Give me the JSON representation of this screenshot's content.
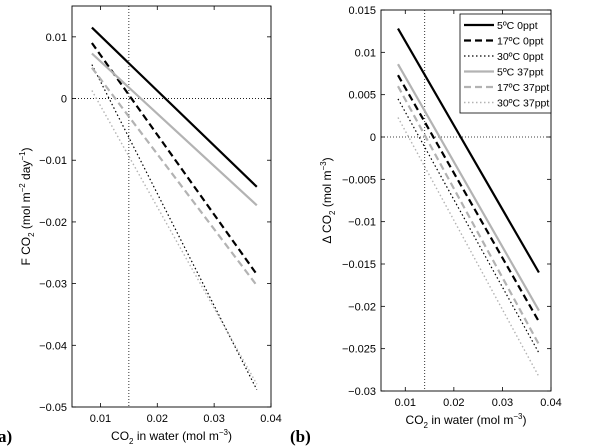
{
  "panel_labels": [
    "a)",
    "(b)"
  ],
  "legend_entries": [
    "5ºC 0ppt",
    "17ºC 0ppt",
    "30ºC 0ppt",
    "5ºC 37ppt",
    "17ºC 37ppt",
    "30ºC 37ppt"
  ],
  "series_styles": [
    {
      "color": "#000000",
      "width": 2.2,
      "dash": ""
    },
    {
      "color": "#000000",
      "width": 2.2,
      "dash": "7,4"
    },
    {
      "color": "#000000",
      "width": 1.2,
      "dash": "1.5,2.5"
    },
    {
      "color": "#b3b3b3",
      "width": 2.2,
      "dash": ""
    },
    {
      "color": "#b3b3b3",
      "width": 2.2,
      "dash": "7,4"
    },
    {
      "color": "#b3b3b3",
      "width": 1.4,
      "dash": "1.5,2.5"
    }
  ],
  "chart_data": [
    {
      "type": "line",
      "panel": "a",
      "xlabel": "CO_2 in water (mol m^-3)",
      "ylabel": "F CO_2 (mol m^-2 day^-1)",
      "xlim": [
        0.005,
        0.04
      ],
      "ylim": [
        -0.05,
        0.015
      ],
      "xticks": [
        0.01,
        0.02,
        0.03,
        0.04
      ],
      "xtick_labels": [
        "0.01",
        "0.02",
        "0.03",
        "0.04"
      ],
      "yticks": [
        -0.05,
        -0.04,
        -0.03,
        -0.02,
        -0.01,
        0,
        0.01
      ],
      "ytick_labels": [
        "−0.05",
        "−0.04",
        "−0.03",
        "−0.02",
        "−0.01",
        "0",
        "0.01"
      ],
      "ref_vline": 0.015,
      "ref_hline": 0,
      "series": [
        {
          "x": [
            0.0085,
            0.0375
          ],
          "y": [
            0.0115,
            -0.0143
          ]
        },
        {
          "x": [
            0.0085,
            0.0375
          ],
          "y": [
            0.009,
            -0.0285
          ]
        },
        {
          "x": [
            0.0085,
            0.0375
          ],
          "y": [
            0.0055,
            -0.0472
          ]
        },
        {
          "x": [
            0.0085,
            0.0375
          ],
          "y": [
            0.0073,
            -0.0173
          ]
        },
        {
          "x": [
            0.0085,
            0.0375
          ],
          "y": [
            0.005,
            -0.0303
          ]
        },
        {
          "x": [
            0.0085,
            0.0375
          ],
          "y": [
            0.0013,
            -0.0463
          ]
        }
      ]
    },
    {
      "type": "line",
      "panel": "b",
      "xlabel": "CO_2 in water (mol m^-3)",
      "ylabel": "Δ CO_2 (mol m^-3)",
      "xlim": [
        0.005,
        0.04
      ],
      "ylim": [
        -0.03,
        0.015
      ],
      "xticks": [
        0.01,
        0.02,
        0.03,
        0.04
      ],
      "xtick_labels": [
        "0.01",
        "0.02",
        "0.03",
        "0.04"
      ],
      "yticks": [
        -0.03,
        -0.025,
        -0.02,
        -0.015,
        -0.01,
        -0.005,
        0,
        0.005,
        0.01,
        0.015
      ],
      "ytick_labels": [
        "−0.03",
        "−0.025",
        "−0.02",
        "−0.015",
        "−0.01",
        "−0.005",
        "0",
        "0.005",
        "0.01",
        "0.015"
      ],
      "ref_vline": 0.014,
      "ref_hline": 0,
      "series": [
        {
          "x": [
            0.0085,
            0.0375
          ],
          "y": [
            0.0128,
            -0.016
          ]
        },
        {
          "x": [
            0.0085,
            0.0375
          ],
          "y": [
            0.0073,
            -0.0218
          ]
        },
        {
          "x": [
            0.0085,
            0.0375
          ],
          "y": [
            0.0045,
            -0.0255
          ]
        },
        {
          "x": [
            0.0085,
            0.0375
          ],
          "y": [
            0.0086,
            -0.0205
          ]
        },
        {
          "x": [
            0.0085,
            0.0375
          ],
          "y": [
            0.006,
            -0.0245
          ]
        },
        {
          "x": [
            0.0085,
            0.0375
          ],
          "y": [
            0.0023,
            -0.0283
          ]
        }
      ]
    }
  ]
}
